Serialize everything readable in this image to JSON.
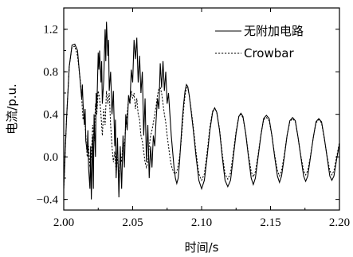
{
  "chart_data": {
    "type": "line",
    "xlabel": "时间/s",
    "ylabel": "电流/p.u.",
    "xlim": [
      2.0,
      2.2
    ],
    "ylim": [
      -0.5,
      1.4
    ],
    "x_ticks": [
      2.0,
      2.05,
      2.1,
      2.15,
      2.2
    ],
    "x_tick_labels": [
      "2.00",
      "2.05",
      "2.10",
      "2.15",
      "2.20"
    ],
    "y_ticks": [
      -0.4,
      0.0,
      0.4,
      0.8,
      1.2
    ],
    "y_tick_labels": [
      "−0.4",
      "0.0",
      "0.4",
      "0.8",
      "1.2"
    ],
    "grid": false,
    "legend_position": "top-right",
    "series": [
      {
        "name": "无附加电路",
        "style": "solid",
        "points": [
          [
            2.0,
            -0.3
          ],
          [
            2.002,
            0.35
          ],
          [
            2.004,
            0.85
          ],
          [
            2.006,
            1.05
          ],
          [
            2.008,
            1.06
          ],
          [
            2.01,
            1.0
          ],
          [
            2.011,
            0.85
          ],
          [
            2.012,
            0.7
          ],
          [
            2.013,
            0.55
          ],
          [
            2.0135,
            0.68
          ],
          [
            2.014,
            0.5
          ],
          [
            2.015,
            0.3
          ],
          [
            2.0155,
            0.45
          ],
          [
            2.016,
            0.15
          ],
          [
            2.017,
            0.05
          ],
          [
            2.0175,
            0.25
          ],
          [
            2.018,
            -0.1
          ],
          [
            2.019,
            -0.3
          ],
          [
            2.0195,
            0.1
          ],
          [
            2.02,
            -0.4
          ],
          [
            2.021,
            0.2
          ],
          [
            2.0215,
            -0.3
          ],
          [
            2.022,
            0.4
          ],
          [
            2.023,
            0.0
          ],
          [
            2.0235,
            0.6
          ],
          [
            2.024,
            0.45
          ],
          [
            2.025,
            0.98
          ],
          [
            2.0255,
            0.82
          ],
          [
            2.026,
            1.0
          ],
          [
            2.027,
            0.7
          ],
          [
            2.0275,
            0.9
          ],
          [
            2.028,
            0.5
          ],
          [
            2.029,
            0.72
          ],
          [
            2.03,
            1.2
          ],
          [
            2.0305,
            0.9
          ],
          [
            2.031,
            1.27
          ],
          [
            2.032,
            0.95
          ],
          [
            2.0325,
            1.1
          ],
          [
            2.033,
            0.62
          ],
          [
            2.034,
            0.8
          ],
          [
            2.035,
            0.4
          ],
          [
            2.036,
            0.62
          ],
          [
            2.037,
            0.1
          ],
          [
            2.0375,
            0.35
          ],
          [
            2.038,
            -0.2
          ],
          [
            2.039,
            0.18
          ],
          [
            2.04,
            -0.38
          ],
          [
            2.041,
            0.1
          ],
          [
            2.042,
            -0.3
          ],
          [
            2.043,
            0.2
          ],
          [
            2.044,
            -0.1
          ],
          [
            2.045,
            0.4
          ],
          [
            2.046,
            0.25
          ],
          [
            2.047,
            0.58
          ],
          [
            2.048,
            0.5
          ],
          [
            2.049,
            0.82
          ],
          [
            2.05,
            0.7
          ],
          [
            2.051,
            1.1
          ],
          [
            2.052,
            0.92
          ],
          [
            2.053,
            1.12
          ],
          [
            2.054,
            0.7
          ],
          [
            2.055,
            0.95
          ],
          [
            2.056,
            0.6
          ],
          [
            2.057,
            0.8
          ],
          [
            2.058,
            0.2
          ],
          [
            2.059,
            0.55
          ],
          [
            2.06,
            -0.05
          ],
          [
            2.061,
            0.3
          ],
          [
            2.062,
            -0.2
          ],
          [
            2.063,
            0.1
          ],
          [
            2.064,
            -0.1
          ],
          [
            2.065,
            0.2
          ],
          [
            2.066,
            0.1
          ],
          [
            2.067,
            0.35
          ],
          [
            2.068,
            0.55
          ],
          [
            2.069,
            0.45
          ],
          [
            2.07,
            0.88
          ],
          [
            2.071,
            0.65
          ],
          [
            2.072,
            0.9
          ],
          [
            2.073,
            0.62
          ],
          [
            2.074,
            0.8
          ],
          [
            2.075,
            0.5
          ],
          [
            2.076,
            0.6
          ],
          [
            2.077,
            0.4
          ],
          [
            2.078,
            0.2
          ],
          [
            2.079,
            0.05
          ],
          [
            2.08,
            -0.1
          ],
          [
            2.081,
            -0.2
          ],
          [
            2.082,
            -0.25
          ],
          [
            2.083,
            -0.2
          ],
          [
            2.084,
            -0.05
          ],
          [
            2.085,
            0.15
          ],
          [
            2.086,
            0.35
          ],
          [
            2.087,
            0.5
          ],
          [
            2.088,
            0.62
          ],
          [
            2.089,
            0.68
          ],
          [
            2.09,
            0.66
          ],
          [
            2.091,
            0.58
          ],
          [
            2.0925,
            0.42
          ],
          [
            2.094,
            0.25
          ],
          [
            2.096,
            0.0
          ],
          [
            2.098,
            -0.22
          ],
          [
            2.1,
            -0.3
          ],
          [
            2.102,
            -0.22
          ],
          [
            2.104,
            0.0
          ],
          [
            2.106,
            0.25
          ],
          [
            2.108,
            0.42
          ],
          [
            2.1095,
            0.46
          ],
          [
            2.111,
            0.42
          ],
          [
            2.113,
            0.25
          ],
          [
            2.115,
            0.0
          ],
          [
            2.117,
            -0.22
          ],
          [
            2.119,
            -0.28
          ],
          [
            2.121,
            -0.22
          ],
          [
            2.123,
            0.0
          ],
          [
            2.125,
            0.22
          ],
          [
            2.127,
            0.38
          ],
          [
            2.1285,
            0.41
          ],
          [
            2.13,
            0.38
          ],
          [
            2.132,
            0.22
          ],
          [
            2.134,
            0.0
          ],
          [
            2.136,
            -0.2
          ],
          [
            2.1375,
            -0.26
          ],
          [
            2.139,
            -0.2
          ],
          [
            2.141,
            0.0
          ],
          [
            2.143,
            0.2
          ],
          [
            2.145,
            0.36
          ],
          [
            2.147,
            0.39
          ],
          [
            2.149,
            0.36
          ],
          [
            2.151,
            0.2
          ],
          [
            2.153,
            0.0
          ],
          [
            2.155,
            -0.18
          ],
          [
            2.1565,
            -0.24
          ],
          [
            2.158,
            -0.18
          ],
          [
            2.16,
            0.0
          ],
          [
            2.162,
            0.2
          ],
          [
            2.164,
            0.34
          ],
          [
            2.166,
            0.37
          ],
          [
            2.168,
            0.34
          ],
          [
            2.17,
            0.18
          ],
          [
            2.172,
            0.0
          ],
          [
            2.174,
            -0.18
          ],
          [
            2.1755,
            -0.23
          ],
          [
            2.177,
            -0.18
          ],
          [
            2.179,
            0.0
          ],
          [
            2.181,
            0.18
          ],
          [
            2.183,
            0.33
          ],
          [
            2.185,
            0.36
          ],
          [
            2.187,
            0.33
          ],
          [
            2.189,
            0.18
          ],
          [
            2.191,
            0.0
          ],
          [
            2.193,
            -0.18
          ],
          [
            2.1945,
            -0.22
          ],
          [
            2.196,
            -0.18
          ],
          [
            2.198,
            -0.02
          ],
          [
            2.2,
            0.12
          ]
        ]
      },
      {
        "name": "Crowbar",
        "style": "dotted",
        "points": [
          [
            2.0,
            -0.3
          ],
          [
            2.002,
            0.35
          ],
          [
            2.004,
            0.85
          ],
          [
            2.006,
            1.03
          ],
          [
            2.008,
            1.04
          ],
          [
            2.01,
            0.95
          ],
          [
            2.012,
            0.72
          ],
          [
            2.013,
            0.55
          ],
          [
            2.014,
            0.35
          ],
          [
            2.015,
            0.4
          ],
          [
            2.016,
            0.2
          ],
          [
            2.017,
            0.0
          ],
          [
            2.018,
            0.1
          ],
          [
            2.019,
            -0.1
          ],
          [
            2.02,
            0.0
          ],
          [
            2.021,
            0.3
          ],
          [
            2.022,
            0.15
          ],
          [
            2.023,
            0.5
          ],
          [
            2.024,
            0.4
          ],
          [
            2.025,
            0.62
          ],
          [
            2.026,
            0.55
          ],
          [
            2.027,
            0.4
          ],
          [
            2.028,
            0.2
          ],
          [
            2.029,
            0.45
          ],
          [
            2.03,
            0.3
          ],
          [
            2.031,
            0.62
          ],
          [
            2.032,
            0.5
          ],
          [
            2.033,
            0.6
          ],
          [
            2.034,
            0.3
          ],
          [
            2.035,
            0.1
          ],
          [
            2.036,
            -0.05
          ],
          [
            2.037,
            0.05
          ],
          [
            2.038,
            -0.15
          ],
          [
            2.039,
            0.0
          ],
          [
            2.04,
            -0.2
          ],
          [
            2.041,
            0.05
          ],
          [
            2.042,
            -0.05
          ],
          [
            2.043,
            0.15
          ],
          [
            2.044,
            0.1
          ],
          [
            2.045,
            0.3
          ],
          [
            2.046,
            0.4
          ],
          [
            2.047,
            0.55
          ],
          [
            2.048,
            0.5
          ],
          [
            2.049,
            0.62
          ],
          [
            2.05,
            0.55
          ],
          [
            2.051,
            0.6
          ],
          [
            2.052,
            0.45
          ],
          [
            2.053,
            0.55
          ],
          [
            2.054,
            0.4
          ],
          [
            2.055,
            0.35
          ],
          [
            2.056,
            0.2
          ],
          [
            2.057,
            0.15
          ],
          [
            2.058,
            0.05
          ],
          [
            2.059,
            -0.05
          ],
          [
            2.06,
            -0.1
          ],
          [
            2.061,
            -0.05
          ],
          [
            2.062,
            0.1
          ],
          [
            2.063,
            0.2
          ],
          [
            2.064,
            0.25
          ],
          [
            2.065,
            0.32
          ],
          [
            2.066,
            0.4
          ],
          [
            2.067,
            0.48
          ],
          [
            2.068,
            0.58
          ],
          [
            2.069,
            0.64
          ],
          [
            2.07,
            0.65
          ],
          [
            2.071,
            0.6
          ],
          [
            2.072,
            0.5
          ],
          [
            2.073,
            0.4
          ],
          [
            2.074,
            0.32
          ],
          [
            2.075,
            0.2
          ],
          [
            2.076,
            0.1
          ],
          [
            2.077,
            0.0
          ],
          [
            2.078,
            -0.08
          ],
          [
            2.079,
            -0.12
          ],
          [
            2.08,
            -0.15
          ],
          [
            2.081,
            -0.16
          ],
          [
            2.082,
            -0.14
          ],
          [
            2.083,
            -0.08
          ],
          [
            2.084,
            0.0
          ],
          [
            2.085,
            0.12
          ],
          [
            2.086,
            0.28
          ],
          [
            2.087,
            0.45
          ],
          [
            2.088,
            0.58
          ],
          [
            2.089,
            0.65
          ],
          [
            2.09,
            0.65
          ],
          [
            2.091,
            0.58
          ],
          [
            2.0925,
            0.44
          ],
          [
            2.094,
            0.28
          ],
          [
            2.096,
            0.04
          ],
          [
            2.098,
            -0.16
          ],
          [
            2.1,
            -0.22
          ],
          [
            2.102,
            -0.16
          ],
          [
            2.104,
            0.04
          ],
          [
            2.106,
            0.28
          ],
          [
            2.108,
            0.43
          ],
          [
            2.1095,
            0.46
          ],
          [
            2.111,
            0.42
          ],
          [
            2.113,
            0.26
          ],
          [
            2.115,
            0.03
          ],
          [
            2.117,
            -0.16
          ],
          [
            2.119,
            -0.21
          ],
          [
            2.121,
            -0.15
          ],
          [
            2.123,
            0.04
          ],
          [
            2.125,
            0.24
          ],
          [
            2.127,
            0.38
          ],
          [
            2.1285,
            0.4
          ],
          [
            2.13,
            0.37
          ],
          [
            2.132,
            0.22
          ],
          [
            2.134,
            0.02
          ],
          [
            2.136,
            -0.14
          ],
          [
            2.1375,
            -0.19
          ],
          [
            2.139,
            -0.14
          ],
          [
            2.141,
            0.02
          ],
          [
            2.143,
            0.21
          ],
          [
            2.145,
            0.35
          ],
          [
            2.147,
            0.37
          ],
          [
            2.149,
            0.34
          ],
          [
            2.151,
            0.2
          ],
          [
            2.153,
            0.02
          ],
          [
            2.155,
            -0.13
          ],
          [
            2.1565,
            -0.18
          ],
          [
            2.158,
            -0.13
          ],
          [
            2.16,
            0.02
          ],
          [
            2.162,
            0.2
          ],
          [
            2.164,
            0.33
          ],
          [
            2.166,
            0.36
          ],
          [
            2.168,
            0.33
          ],
          [
            2.17,
            0.18
          ],
          [
            2.172,
            0.01
          ],
          [
            2.174,
            -0.13
          ],
          [
            2.1755,
            -0.17
          ],
          [
            2.177,
            -0.13
          ],
          [
            2.179,
            0.01
          ],
          [
            2.181,
            0.18
          ],
          [
            2.183,
            0.32
          ],
          [
            2.185,
            0.35
          ],
          [
            2.187,
            0.32
          ],
          [
            2.189,
            0.17
          ],
          [
            2.191,
            0.01
          ],
          [
            2.193,
            -0.13
          ],
          [
            2.1945,
            -0.17
          ],
          [
            2.196,
            -0.13
          ],
          [
            2.198,
            0.0
          ],
          [
            2.2,
            0.14
          ]
        ]
      }
    ]
  }
}
